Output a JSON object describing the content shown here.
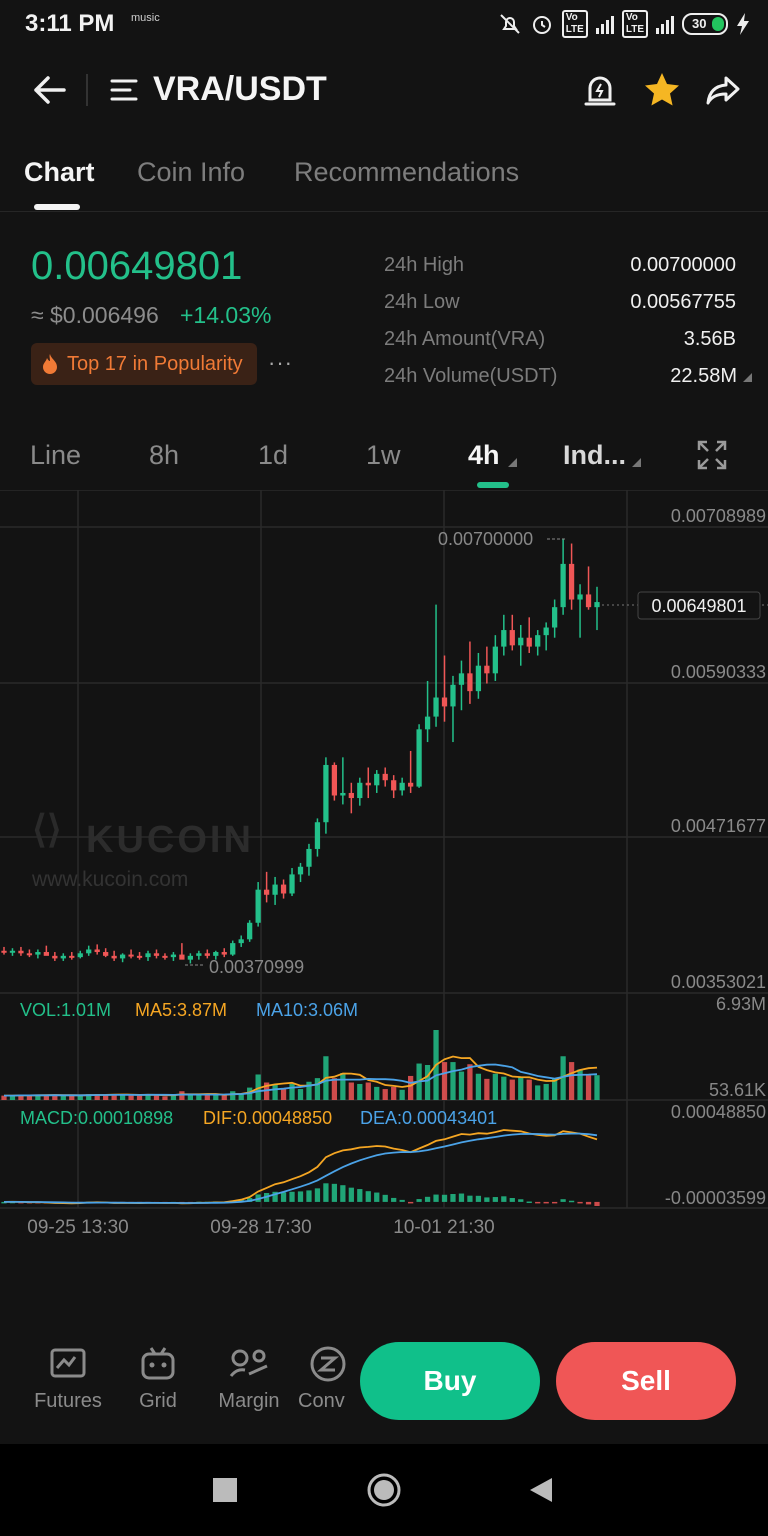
{
  "status": {
    "time": "3:11 PM",
    "music": "music",
    "battery": "30"
  },
  "header": {
    "pair": "VRA/USDT"
  },
  "tabs": [
    {
      "label": "Chart"
    },
    {
      "label": "Coin Info"
    },
    {
      "label": "Recommendations"
    }
  ],
  "ticker": {
    "price": "0.00649801",
    "usd": "≈ $0.006496",
    "change": "+14.03%",
    "popularity": "Top 17 in Popularity",
    "more": "···",
    "stats": [
      {
        "label": "24h High",
        "value": "0.00700000"
      },
      {
        "label": "24h Low",
        "value": "0.00567755"
      },
      {
        "label": "24h Amount(VRA)",
        "value": "3.56B"
      },
      {
        "label": "24h Volume(USDT)",
        "value": "22.58M"
      }
    ]
  },
  "timeframes": [
    {
      "label": "Line"
    },
    {
      "label": "8h"
    },
    {
      "label": "1d"
    },
    {
      "label": "1w"
    },
    {
      "label": "4h"
    },
    {
      "label": "Ind..."
    }
  ],
  "colors": {
    "up": "#23c08a",
    "down": "#f05656",
    "ma5": "#f5a623",
    "ma10": "#4ba3e8"
  },
  "chart_data": {
    "type": "candlestick",
    "y_ticks": [
      "0.00708989",
      "0.00590333",
      "0.00471677",
      "0.00353021"
    ],
    "ylim": [
      0.00353021,
      0.00708989
    ],
    "current_price_label": "0.00649801",
    "max_label": "0.00700000",
    "min_label": "0.00370999",
    "x_ticks": [
      "09-25 13:30",
      "09-28 17:30",
      "10-01 21:30"
    ],
    "watermark": {
      "brand": "KUCOIN",
      "url": "www.kucoin.com"
    },
    "candles": [
      {
        "o": 0.00376,
        "h": 0.00379,
        "l": 0.00373,
        "c": 0.00375
      },
      {
        "o": 0.00375,
        "h": 0.00378,
        "l": 0.00372,
        "c": 0.00376
      },
      {
        "o": 0.00376,
        "h": 0.00379,
        "l": 0.00372,
        "c": 0.00374
      },
      {
        "o": 0.00374,
        "h": 0.00377,
        "l": 0.00371,
        "c": 0.00373
      },
      {
        "o": 0.00373,
        "h": 0.00377,
        "l": 0.0037,
        "c": 0.00375
      },
      {
        "o": 0.00375,
        "h": 0.0038,
        "l": 0.00373,
        "c": 0.00372
      },
      {
        "o": 0.00372,
        "h": 0.00375,
        "l": 0.00368,
        "c": 0.0037
      },
      {
        "o": 0.0037,
        "h": 0.00374,
        "l": 0.00368,
        "c": 0.00372
      },
      {
        "o": 0.00372,
        "h": 0.00375,
        "l": 0.00369,
        "c": 0.00371
      },
      {
        "o": 0.00371,
        "h": 0.00376,
        "l": 0.0037,
        "c": 0.00374
      },
      {
        "o": 0.00374,
        "h": 0.0038,
        "l": 0.00372,
        "c": 0.00377
      },
      {
        "o": 0.00377,
        "h": 0.00381,
        "l": 0.00373,
        "c": 0.00375
      },
      {
        "o": 0.00375,
        "h": 0.00378,
        "l": 0.00371,
        "c": 0.00372
      },
      {
        "o": 0.00372,
        "h": 0.00376,
        "l": 0.00368,
        "c": 0.0037
      },
      {
        "o": 0.0037,
        "h": 0.00374,
        "l": 0.00367,
        "c": 0.00373
      },
      {
        "o": 0.00373,
        "h": 0.00377,
        "l": 0.0037,
        "c": 0.00372
      },
      {
        "o": 0.00372,
        "h": 0.00375,
        "l": 0.00369,
        "c": 0.00371
      },
      {
        "o": 0.00371,
        "h": 0.00376,
        "l": 0.00368,
        "c": 0.00374
      },
      {
        "o": 0.00374,
        "h": 0.00377,
        "l": 0.0037,
        "c": 0.00372
      },
      {
        "o": 0.00372,
        "h": 0.00374,
        "l": 0.00369,
        "c": 0.00371
      },
      {
        "o": 0.00371,
        "h": 0.00375,
        "l": 0.00368,
        "c": 0.00373
      },
      {
        "o": 0.00373,
        "h": 0.00382,
        "l": 0.0037,
        "c": 0.00369
      },
      {
        "o": 0.00369,
        "h": 0.00374,
        "l": 0.00366,
        "c": 0.00372
      },
      {
        "o": 0.00372,
        "h": 0.00376,
        "l": 0.00369,
        "c": 0.00374
      },
      {
        "o": 0.00374,
        "h": 0.00377,
        "l": 0.0037,
        "c": 0.00372
      },
      {
        "o": 0.00372,
        "h": 0.00376,
        "l": 0.00369,
        "c": 0.00375
      },
      {
        "o": 0.00375,
        "h": 0.00378,
        "l": 0.00371,
        "c": 0.00373
      },
      {
        "o": 0.00373,
        "h": 0.00384,
        "l": 0.00372,
        "c": 0.00382
      },
      {
        "o": 0.00382,
        "h": 0.00388,
        "l": 0.00379,
        "c": 0.00385
      },
      {
        "o": 0.00385,
        "h": 0.004,
        "l": 0.00383,
        "c": 0.00398
      },
      {
        "o": 0.00398,
        "h": 0.0043,
        "l": 0.00395,
        "c": 0.00424
      },
      {
        "o": 0.00424,
        "h": 0.00438,
        "l": 0.00414,
        "c": 0.0042
      },
      {
        "o": 0.0042,
        "h": 0.00434,
        "l": 0.00412,
        "c": 0.00428
      },
      {
        "o": 0.00428,
        "h": 0.00432,
        "l": 0.00417,
        "c": 0.00421
      },
      {
        "o": 0.00421,
        "h": 0.00441,
        "l": 0.00419,
        "c": 0.00436
      },
      {
        "o": 0.00436,
        "h": 0.00445,
        "l": 0.0043,
        "c": 0.00442
      },
      {
        "o": 0.00442,
        "h": 0.0046,
        "l": 0.00435,
        "c": 0.00456
      },
      {
        "o": 0.00456,
        "h": 0.0048,
        "l": 0.0045,
        "c": 0.00477
      },
      {
        "o": 0.00477,
        "h": 0.00528,
        "l": 0.00468,
        "c": 0.00522
      },
      {
        "o": 0.00522,
        "h": 0.00524,
        "l": 0.00494,
        "c": 0.00498
      },
      {
        "o": 0.00498,
        "h": 0.00528,
        "l": 0.00491,
        "c": 0.005
      },
      {
        "o": 0.005,
        "h": 0.00508,
        "l": 0.00484,
        "c": 0.00496
      },
      {
        "o": 0.00496,
        "h": 0.00512,
        "l": 0.0049,
        "c": 0.00508
      },
      {
        "o": 0.00508,
        "h": 0.0052,
        "l": 0.00496,
        "c": 0.00506
      },
      {
        "o": 0.00506,
        "h": 0.00518,
        "l": 0.005,
        "c": 0.00515
      },
      {
        "o": 0.00515,
        "h": 0.0052,
        "l": 0.00505,
        "c": 0.0051
      },
      {
        "o": 0.0051,
        "h": 0.00514,
        "l": 0.00496,
        "c": 0.00502
      },
      {
        "o": 0.00502,
        "h": 0.00512,
        "l": 0.00498,
        "c": 0.00508
      },
      {
        "o": 0.00508,
        "h": 0.00533,
        "l": 0.005,
        "c": 0.00505
      },
      {
        "o": 0.00505,
        "h": 0.00554,
        "l": 0.00504,
        "c": 0.0055
      },
      {
        "o": 0.0055,
        "h": 0.00588,
        "l": 0.0054,
        "c": 0.0056
      },
      {
        "o": 0.0056,
        "h": 0.00648,
        "l": 0.00552,
        "c": 0.00575
      },
      {
        "o": 0.00575,
        "h": 0.00608,
        "l": 0.00556,
        "c": 0.00568
      },
      {
        "o": 0.00568,
        "h": 0.00592,
        "l": 0.0054,
        "c": 0.00585
      },
      {
        "o": 0.00585,
        "h": 0.00604,
        "l": 0.00565,
        "c": 0.00594
      },
      {
        "o": 0.00594,
        "h": 0.00619,
        "l": 0.0057,
        "c": 0.0058
      },
      {
        "o": 0.0058,
        "h": 0.0061,
        "l": 0.00574,
        "c": 0.006
      },
      {
        "o": 0.006,
        "h": 0.00615,
        "l": 0.00586,
        "c": 0.00594
      },
      {
        "o": 0.00594,
        "h": 0.00624,
        "l": 0.00588,
        "c": 0.00615
      },
      {
        "o": 0.00615,
        "h": 0.0064,
        "l": 0.00608,
        "c": 0.00628
      },
      {
        "o": 0.00628,
        "h": 0.0064,
        "l": 0.00612,
        "c": 0.00616
      },
      {
        "o": 0.00616,
        "h": 0.00632,
        "l": 0.006,
        "c": 0.00622
      },
      {
        "o": 0.00622,
        "h": 0.00638,
        "l": 0.0061,
        "c": 0.00615
      },
      {
        "o": 0.00615,
        "h": 0.00628,
        "l": 0.00608,
        "c": 0.00624
      },
      {
        "o": 0.00624,
        "h": 0.00634,
        "l": 0.00612,
        "c": 0.0063
      },
      {
        "o": 0.0063,
        "h": 0.00652,
        "l": 0.00622,
        "c": 0.00646
      },
      {
        "o": 0.00646,
        "h": 0.007,
        "l": 0.0064,
        "c": 0.0068
      },
      {
        "o": 0.0068,
        "h": 0.00696,
        "l": 0.00644,
        "c": 0.00652
      },
      {
        "o": 0.00652,
        "h": 0.00664,
        "l": 0.00622,
        "c": 0.00656
      },
      {
        "o": 0.00656,
        "h": 0.00678,
        "l": 0.00644,
        "c": 0.00646
      },
      {
        "o": 0.00646,
        "h": 0.00662,
        "l": 0.00628,
        "c": 0.0065
      }
    ],
    "volume": {
      "label_vol": "VOL:1.01M",
      "label_ma5": "MA5:3.87M",
      "label_ma10": "MA10:3.06M",
      "max_label": "6.93M",
      "min_label": "53.61K"
    },
    "macd": {
      "label_macd": "MACD:0.00010898",
      "label_dif": "DIF:0.00048850",
      "label_dea": "DEA:0.00043401",
      "max_label": "0.00048850",
      "min_label": "-0.00003599"
    }
  },
  "bottom": {
    "tools": [
      {
        "label": "Futures"
      },
      {
        "label": "Grid"
      },
      {
        "label": "Margin"
      },
      {
        "label": "Conv"
      }
    ],
    "buy": "Buy",
    "sell": "Sell"
  }
}
